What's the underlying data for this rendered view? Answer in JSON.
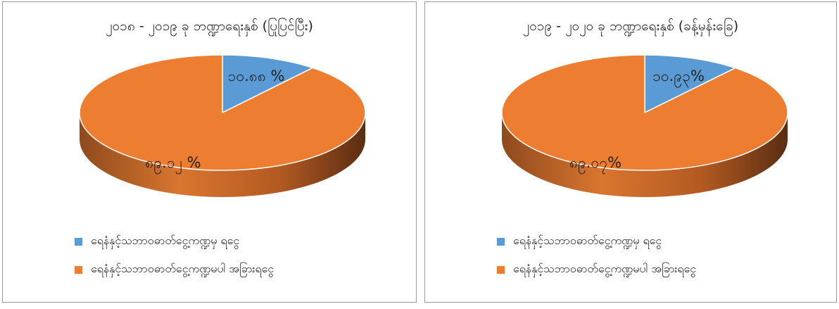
{
  "colors": {
    "series_a": "#5b9bd5",
    "series_b": "#ed7d31"
  },
  "chart_data": [
    {
      "type": "pie",
      "style": "3d",
      "title": "၂၀၁၈ - ၂၀၁၉ ခု ဘဏ္ဍာရေးနှစ် (ပြုပြင်ပြီး)",
      "categories": [
        "ရေနံနှင့်သဘာဝဓာတ်ငွေ့ကဏ္ဍမှ ရငွေ",
        "ရေနံနှင့်သဘာဝဓာတ်ငွေ့ကဏ္ဍမပါ အခြားရငွေ"
      ],
      "values": [
        10.88,
        89.12
      ],
      "value_labels": [
        "၁၀.၈၈ %",
        "၈၉.၁၂ %"
      ],
      "legend_position": "bottom-left"
    },
    {
      "type": "pie",
      "style": "3d",
      "title": "၂၀၁၉ - ၂၀၂၀ ခု ဘဏ္ဍာရေးနှစ် (ခန့်မှန်းခြေ)",
      "categories": [
        "ရေနံနှင့်သဘာဝဓာတ်ငွေ့ကဏ္ဍမှ ရငွေ",
        "ရေနံနှင့်သဘာဝဓာတ်ငွေ့ကဏ္ဍမပါ အခြားရငွေ"
      ],
      "values": [
        10.93,
        89.07
      ],
      "value_labels": [
        "၁၀.၉၃%",
        "၈၉.၀၇%"
      ],
      "legend_position": "bottom-left"
    }
  ]
}
